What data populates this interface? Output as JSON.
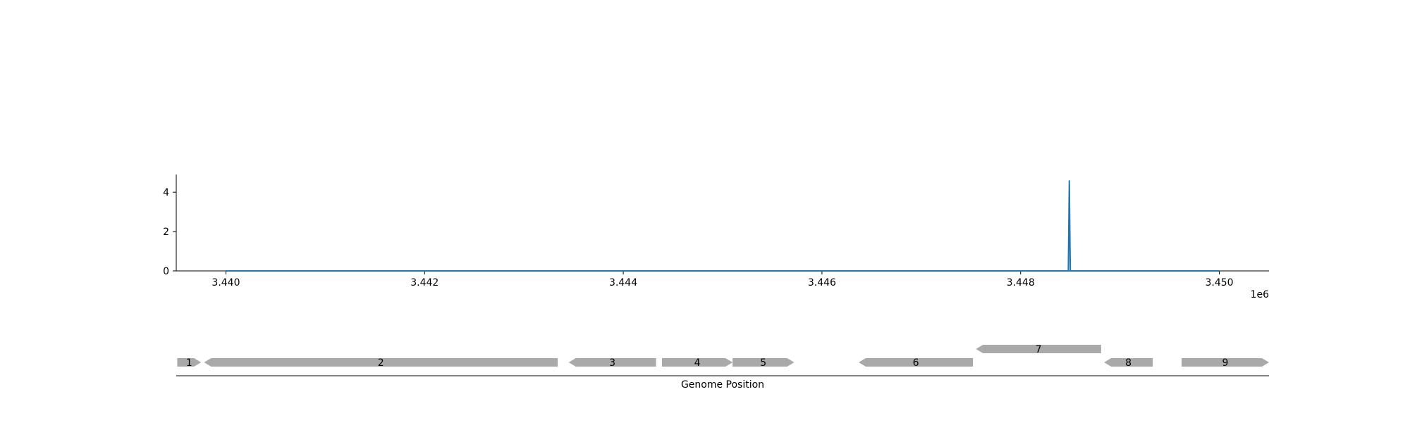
{
  "chart_data": [
    {
      "type": "line",
      "title": "",
      "xlabel": "",
      "ylabel": "",
      "x_offset_label": "1e6",
      "xlim": [
        3439500,
        3450500
      ],
      "ylim": [
        0,
        4.9
      ],
      "grid": false,
      "xticks": [
        3440000,
        3442000,
        3444000,
        3446000,
        3448000,
        3450000
      ],
      "xtick_labels": [
        "3.440",
        "3.442",
        "3.444",
        "3.446",
        "3.448",
        "3.450"
      ],
      "yticks": [
        0,
        2,
        4
      ],
      "ytick_labels": [
        "0",
        "2",
        "4"
      ],
      "series": [
        {
          "color": "#1f77b4",
          "x": [
            3440000,
            3448480,
            3448490,
            3448495,
            3448500,
            3450000
          ],
          "y": [
            0,
            0,
            4.6,
            2.0,
            0,
            0
          ]
        }
      ]
    },
    {
      "type": "gene_track",
      "xlabel": "Genome Position",
      "color": "#a9a9a9",
      "genes": [
        {
          "label": "1",
          "start": 3439510,
          "end": 3439750,
          "strand": "+",
          "row": 0
        },
        {
          "label": "2",
          "start": 3439780,
          "end": 3443340,
          "strand": "-",
          "row": 0
        },
        {
          "label": "3",
          "start": 3443450,
          "end": 3444330,
          "strand": "-",
          "row": 0
        },
        {
          "label": "4",
          "start": 3444390,
          "end": 3445100,
          "strand": "+",
          "row": 0
        },
        {
          "label": "5",
          "start": 3445100,
          "end": 3445720,
          "strand": "+",
          "row": 0
        },
        {
          "label": "6",
          "start": 3446370,
          "end": 3447520,
          "strand": "-",
          "row": 0
        },
        {
          "label": "7",
          "start": 3447550,
          "end": 3448810,
          "strand": "-",
          "row": 1
        },
        {
          "label": "8",
          "start": 3448840,
          "end": 3449330,
          "strand": "-",
          "row": 0
        },
        {
          "label": "9",
          "start": 3449620,
          "end": 3450500,
          "strand": "+",
          "row": 0
        }
      ]
    }
  ]
}
